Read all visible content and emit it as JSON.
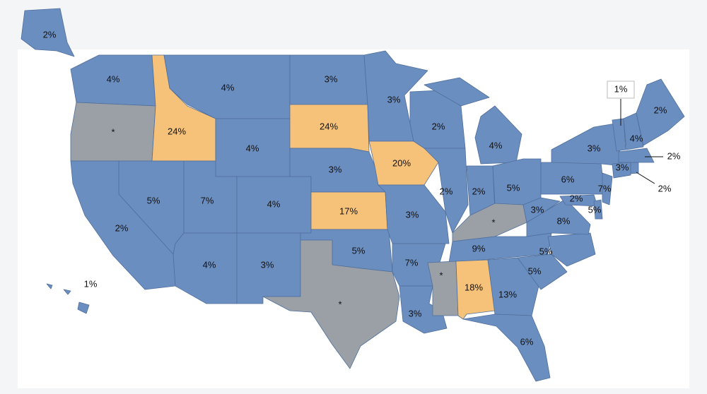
{
  "regions": [
    {
      "label": "2%",
      "color": "#6b8ec0"
    },
    {
      "label": "1%",
      "color": "#6b8ec0"
    },
    {
      "label": "4%",
      "color": "#6b8ec0"
    },
    {
      "label": "*",
      "color": "#9aa0a6"
    },
    {
      "label": "24%",
      "color": "#f6c27a"
    },
    {
      "label": "4%",
      "color": "#6b8ec0"
    },
    {
      "label": "4%",
      "color": "#6b8ec0"
    },
    {
      "label": "5%",
      "color": "#6b8ec0"
    },
    {
      "label": "2%",
      "color": "#6b8ec0"
    },
    {
      "label": "7%",
      "color": "#6b8ec0"
    },
    {
      "label": "4%",
      "color": "#6b8ec0"
    },
    {
      "label": "4%",
      "color": "#6b8ec0"
    },
    {
      "label": "3%",
      "color": "#6b8ec0"
    },
    {
      "label": "3%",
      "color": "#6b8ec0"
    },
    {
      "label": "24%",
      "color": "#f6c27a"
    },
    {
      "label": "3%",
      "color": "#6b8ec0"
    },
    {
      "label": "17%",
      "color": "#f6c27a"
    },
    {
      "label": "5%",
      "color": "#6b8ec0"
    },
    {
      "label": "*",
      "color": "#9aa0a6"
    },
    {
      "label": "3%",
      "color": "#6b8ec0"
    },
    {
      "label": "20%",
      "color": "#f6c27a"
    },
    {
      "label": "3%",
      "color": "#6b8ec0"
    },
    {
      "label": "7%",
      "color": "#6b8ec0"
    },
    {
      "label": "3%",
      "color": "#6b8ec0"
    },
    {
      "label": "2%",
      "color": "#6b8ec0"
    },
    {
      "label": "2%",
      "color": "#6b8ec0"
    },
    {
      "label": "4%",
      "color": "#6b8ec0"
    },
    {
      "label": "2%",
      "color": "#6b8ec0"
    },
    {
      "label": "5%",
      "color": "#6b8ec0"
    },
    {
      "label": "*",
      "color": "#9aa0a6"
    },
    {
      "label": "9%",
      "color": "#6b8ec0"
    },
    {
      "label": "*",
      "color": "#9aa0a6"
    },
    {
      "label": "18%",
      "color": "#f6c27a"
    },
    {
      "label": "13%",
      "color": "#6b8ec0"
    },
    {
      "label": "6%",
      "color": "#6b8ec0"
    },
    {
      "label": "5%",
      "color": "#6b8ec0"
    },
    {
      "label": "5%",
      "color": "#6b8ec0"
    },
    {
      "label": "8%",
      "color": "#6b8ec0"
    },
    {
      "label": "3%",
      "color": "#6b8ec0"
    },
    {
      "label": "6%",
      "color": "#6b8ec0"
    },
    {
      "label": "3%",
      "color": "#6b8ec0"
    },
    {
      "label": "2%",
      "color": "#6b8ec0"
    },
    {
      "label": "5%",
      "color": "#6b8ec0"
    },
    {
      "label": "7%",
      "color": "#6b8ec0"
    },
    {
      "label": "3%",
      "color": "#6b8ec0"
    },
    {
      "label": "2%",
      "color": "#6b8ec0"
    },
    {
      "label": "2%",
      "color": "#6b8ec0"
    },
    {
      "label": "1%",
      "color": "#6b8ec0"
    },
    {
      "label": "4%",
      "color": "#6b8ec0"
    },
    {
      "label": "2%",
      "color": "#6b8ec0"
    }
  ]
}
